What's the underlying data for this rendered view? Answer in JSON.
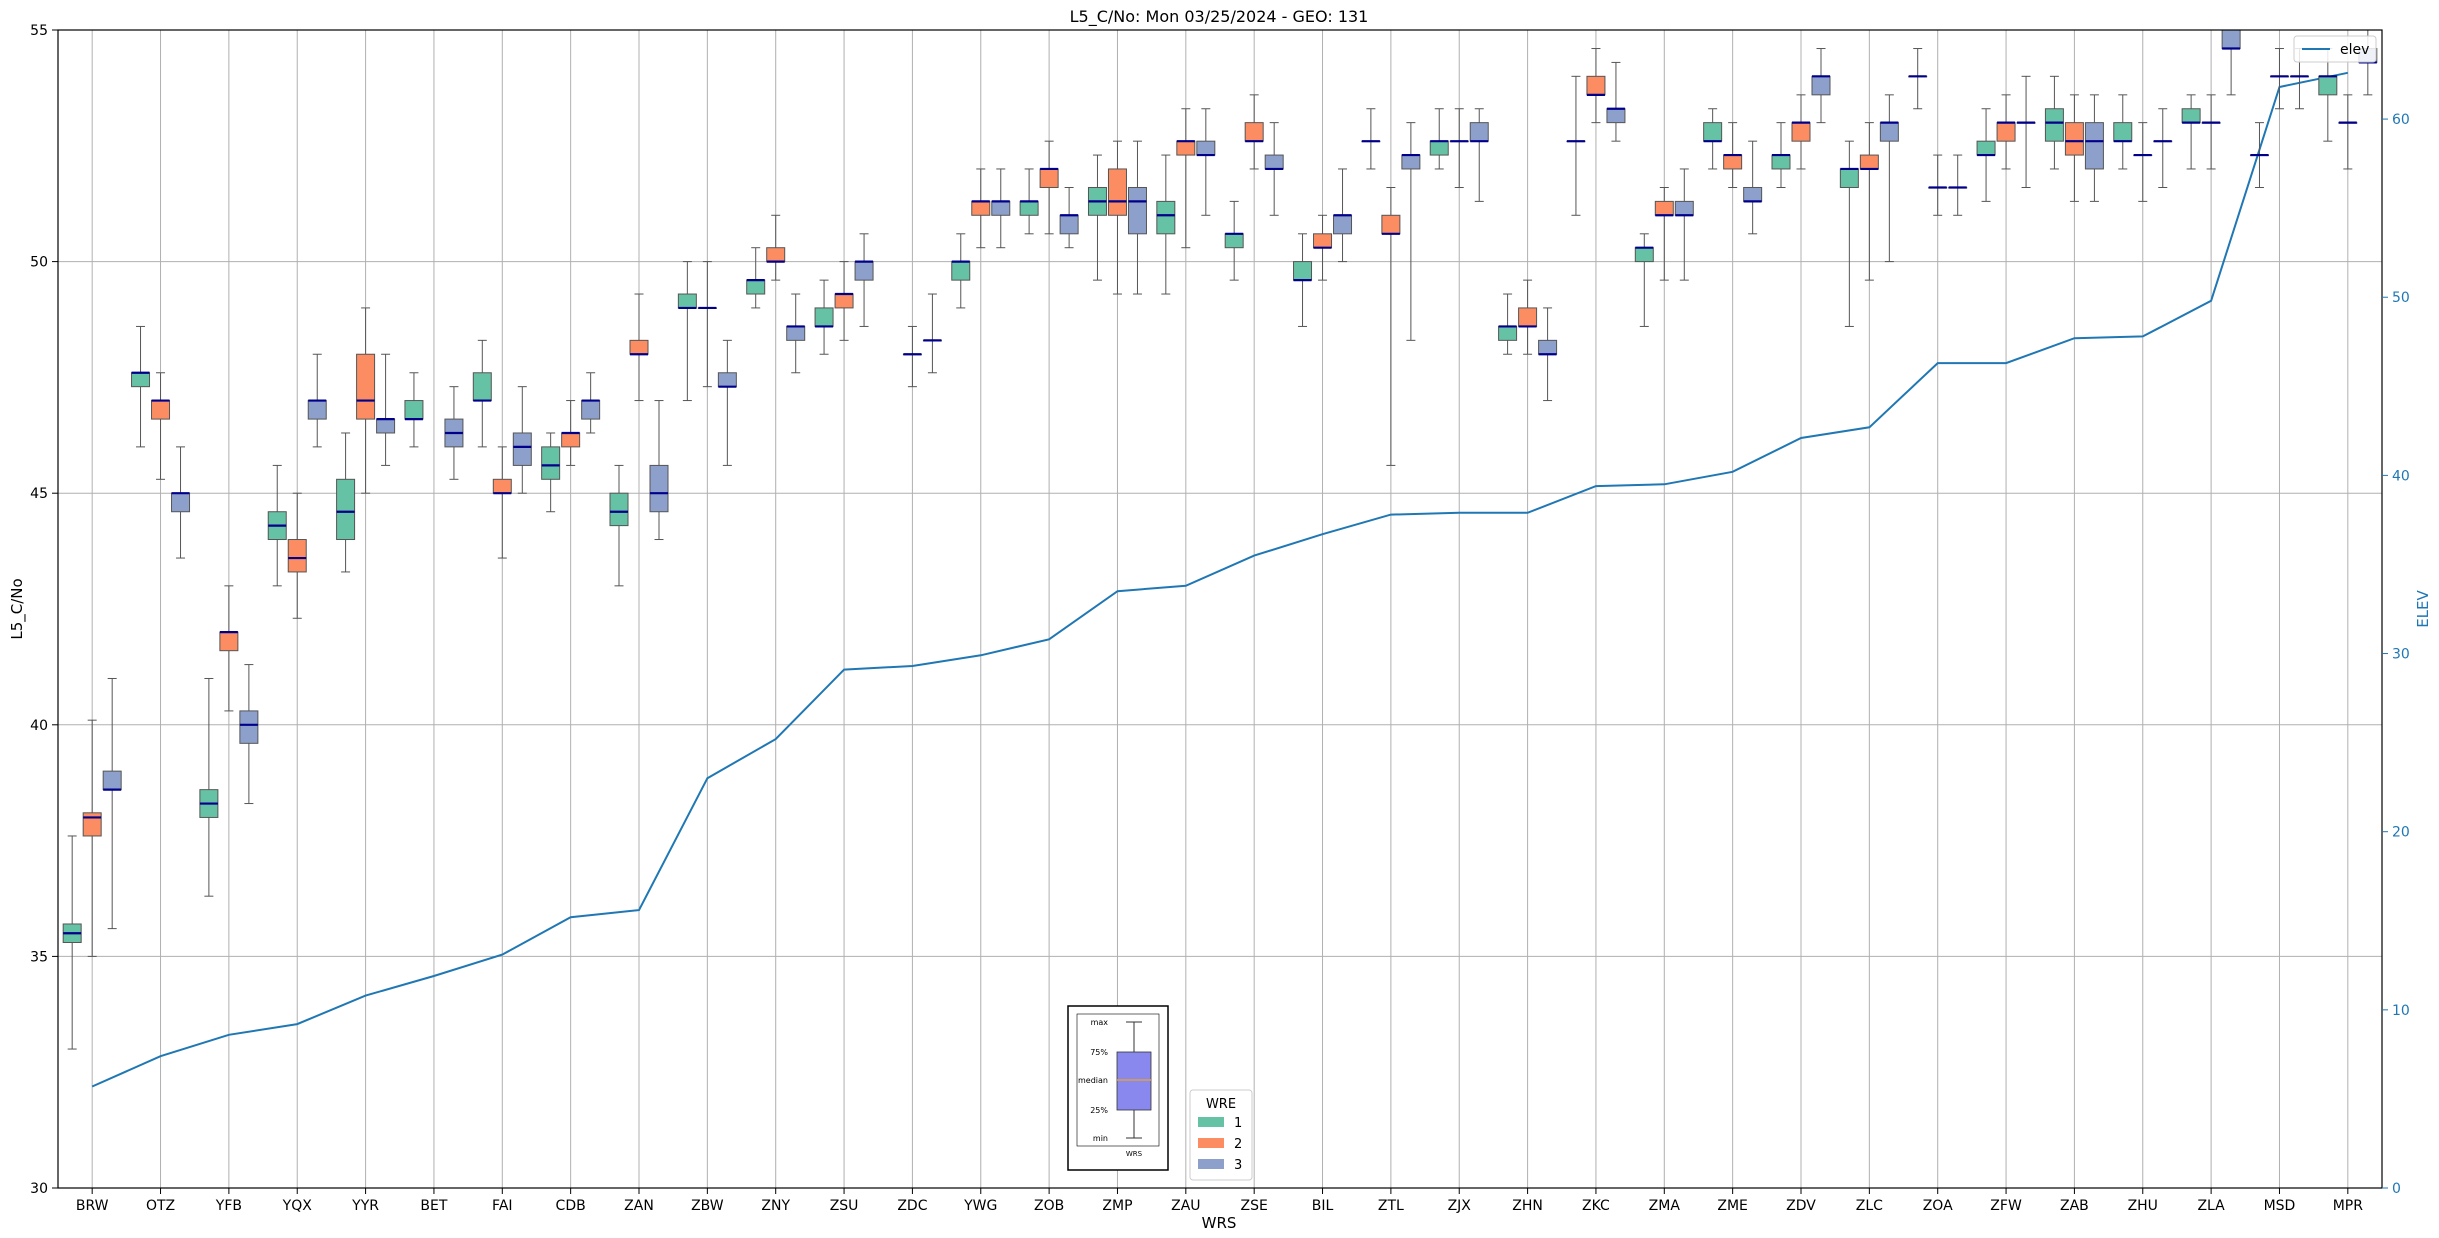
{
  "chart_data": {
    "type": "box",
    "title": "L5_C/No: Mon 03/25/2024 - GEO: 131",
    "xlabel": "WRS",
    "ylabel": "L5_C/No",
    "y2label": "ELEV",
    "ylim": [
      30,
      55
    ],
    "y2lim": [
      0,
      65
    ],
    "yticks": [
      30,
      35,
      40,
      45,
      50,
      55
    ],
    "y2ticks": [
      0,
      10,
      20,
      30,
      40,
      50,
      60
    ],
    "grid": true,
    "colors": {
      "1": "#66c2a5",
      "2": "#fc8d62",
      "3": "#8da0cb",
      "median": "#00008b",
      "elev": "#1f77b4"
    },
    "categories": [
      "BRW",
      "OTZ",
      "YFB",
      "YQX",
      "YYR",
      "BET",
      "FAI",
      "CDB",
      "ZAN",
      "ZBW",
      "ZNY",
      "ZSU",
      "ZDC",
      "YWG",
      "ZOB",
      "ZMP",
      "ZAU",
      "ZSE",
      "BIL",
      "ZTL",
      "ZJX",
      "ZHN",
      "ZKC",
      "ZMA",
      "ZME",
      "ZDV",
      "ZLC",
      "ZOA",
      "ZFW",
      "ZAB",
      "ZHU",
      "ZLA",
      "MSD",
      "MPR"
    ],
    "legend": {
      "title": "WRE",
      "entries": [
        "1",
        "2",
        "3"
      ],
      "position": "lower-center"
    },
    "line_legend": {
      "entries": [
        "elev"
      ],
      "position": "upper-right"
    },
    "key": {
      "labels": [
        "max",
        "75%",
        "median",
        "25%",
        "min"
      ],
      "xlabel": "WRS"
    },
    "boxes": [
      {
        "cat": "BRW",
        "wre": "1",
        "min": 33.0,
        "q1": 35.3,
        "med": 35.5,
        "q3": 35.7,
        "max": 37.6
      },
      {
        "cat": "BRW",
        "wre": "2",
        "min": 35.0,
        "q1": 37.6,
        "med": 38.0,
        "q3": 38.1,
        "max": 40.1
      },
      {
        "cat": "BRW",
        "wre": "3",
        "min": 35.6,
        "q1": 38.6,
        "med": 38.6,
        "q3": 39.0,
        "max": 41.0
      },
      {
        "cat": "OTZ",
        "wre": "1",
        "min": 46.0,
        "q1": 47.3,
        "med": 47.6,
        "q3": 47.6,
        "max": 48.6
      },
      {
        "cat": "OTZ",
        "wre": "2",
        "min": 45.3,
        "q1": 46.6,
        "med": 47.0,
        "q3": 47.0,
        "max": 47.6
      },
      {
        "cat": "OTZ",
        "wre": "3",
        "min": 43.6,
        "q1": 44.6,
        "med": 45.0,
        "q3": 45.0,
        "max": 46.0
      },
      {
        "cat": "YFB",
        "wre": "1",
        "min": 36.3,
        "q1": 38.0,
        "med": 38.3,
        "q3": 38.6,
        "max": 41.0
      },
      {
        "cat": "YFB",
        "wre": "2",
        "min": 40.3,
        "q1": 41.6,
        "med": 42.0,
        "q3": 42.0,
        "max": 43.0
      },
      {
        "cat": "YFB",
        "wre": "3",
        "min": 38.3,
        "q1": 39.6,
        "med": 40.0,
        "q3": 40.3,
        "max": 41.3
      },
      {
        "cat": "YQX",
        "wre": "1",
        "min": 43.0,
        "q1": 44.0,
        "med": 44.3,
        "q3": 44.6,
        "max": 45.6
      },
      {
        "cat": "YQX",
        "wre": "2",
        "min": 42.3,
        "q1": 43.3,
        "med": 43.6,
        "q3": 44.0,
        "max": 45.0
      },
      {
        "cat": "YQX",
        "wre": "3",
        "min": 46.0,
        "q1": 46.6,
        "med": 47.0,
        "q3": 47.0,
        "max": 48.0
      },
      {
        "cat": "YYR",
        "wre": "1",
        "min": 43.3,
        "q1": 44.0,
        "med": 44.6,
        "q3": 45.3,
        "max": 46.3
      },
      {
        "cat": "YYR",
        "wre": "2",
        "min": 45.0,
        "q1": 46.6,
        "med": 47.0,
        "q3": 48.0,
        "max": 49.0
      },
      {
        "cat": "YYR",
        "wre": "3",
        "min": 45.6,
        "q1": 46.3,
        "med": 46.6,
        "q3": 46.6,
        "max": 48.0
      },
      {
        "cat": "BET",
        "wre": "1",
        "min": 46.0,
        "q1": 46.6,
        "med": 46.6,
        "q3": 47.0,
        "max": 47.6
      },
      {
        "cat": "BET",
        "wre": "3",
        "min": 45.3,
        "q1": 46.0,
        "med": 46.3,
        "q3": 46.6,
        "max": 47.3
      },
      {
        "cat": "FAI",
        "wre": "1",
        "min": 46.0,
        "q1": 47.0,
        "med": 47.0,
        "q3": 47.6,
        "max": 48.3
      },
      {
        "cat": "FAI",
        "wre": "2",
        "min": 43.6,
        "q1": 45.0,
        "med": 45.0,
        "q3": 45.3,
        "max": 46.0
      },
      {
        "cat": "FAI",
        "wre": "3",
        "min": 45.0,
        "q1": 45.6,
        "med": 46.0,
        "q3": 46.3,
        "max": 47.3
      },
      {
        "cat": "CDB",
        "wre": "1",
        "min": 44.6,
        "q1": 45.3,
        "med": 45.6,
        "q3": 46.0,
        "max": 46.3
      },
      {
        "cat": "CDB",
        "wre": "2",
        "min": 45.6,
        "q1": 46.0,
        "med": 46.3,
        "q3": 46.3,
        "max": 47.0
      },
      {
        "cat": "CDB",
        "wre": "3",
        "min": 46.3,
        "q1": 46.6,
        "med": 47.0,
        "q3": 47.0,
        "max": 47.6
      },
      {
        "cat": "ZAN",
        "wre": "1",
        "min": 43.0,
        "q1": 44.3,
        "med": 44.6,
        "q3": 45.0,
        "max": 45.6
      },
      {
        "cat": "ZAN",
        "wre": "2",
        "min": 47.0,
        "q1": 48.0,
        "med": 48.0,
        "q3": 48.3,
        "max": 49.3
      },
      {
        "cat": "ZAN",
        "wre": "3",
        "min": 44.0,
        "q1": 44.6,
        "med": 45.0,
        "q3": 45.6,
        "max": 47.0
      },
      {
        "cat": "ZBW",
        "wre": "1",
        "min": 47.0,
        "q1": 49.0,
        "med": 49.0,
        "q3": 49.3,
        "max": 50.0
      },
      {
        "cat": "ZBW",
        "wre": "2",
        "min": 47.3,
        "q1": 49.0,
        "med": 49.0,
        "q3": 49.0,
        "max": 50.0
      },
      {
        "cat": "ZBW",
        "wre": "3",
        "min": 45.6,
        "q1": 47.3,
        "med": 47.3,
        "q3": 47.6,
        "max": 48.3
      },
      {
        "cat": "ZNY",
        "wre": "1",
        "min": 49.0,
        "q1": 49.3,
        "med": 49.6,
        "q3": 49.6,
        "max": 50.3
      },
      {
        "cat": "ZNY",
        "wre": "2",
        "min": 49.6,
        "q1": 50.0,
        "med": 50.0,
        "q3": 50.3,
        "max": 51.0
      },
      {
        "cat": "ZNY",
        "wre": "3",
        "min": 47.6,
        "q1": 48.3,
        "med": 48.6,
        "q3": 48.6,
        "max": 49.3
      },
      {
        "cat": "ZSU",
        "wre": "1",
        "min": 48.0,
        "q1": 48.6,
        "med": 48.6,
        "q3": 49.0,
        "max": 49.6
      },
      {
        "cat": "ZSU",
        "wre": "2",
        "min": 48.3,
        "q1": 49.0,
        "med": 49.3,
        "q3": 49.3,
        "max": 50.0
      },
      {
        "cat": "ZSU",
        "wre": "3",
        "min": 48.6,
        "q1": 49.6,
        "med": 50.0,
        "q3": 50.0,
        "max": 50.6
      },
      {
        "cat": "ZDC",
        "wre": "2",
        "min": 47.3,
        "q1": 48.0,
        "med": 48.0,
        "q3": 48.0,
        "max": 48.6
      },
      {
        "cat": "ZDC",
        "wre": "3",
        "min": 47.6,
        "q1": 48.3,
        "med": 48.3,
        "q3": 48.3,
        "max": 49.3
      },
      {
        "cat": "YWG",
        "wre": "1",
        "min": 49.0,
        "q1": 49.6,
        "med": 50.0,
        "q3": 50.0,
        "max": 50.6
      },
      {
        "cat": "YWG",
        "wre": "2",
        "min": 50.3,
        "q1": 51.0,
        "med": 51.3,
        "q3": 51.3,
        "max": 52.0
      },
      {
        "cat": "YWG",
        "wre": "3",
        "min": 50.3,
        "q1": 51.0,
        "med": 51.3,
        "q3": 51.3,
        "max": 52.0
      },
      {
        "cat": "ZOB",
        "wre": "1",
        "min": 50.6,
        "q1": 51.0,
        "med": 51.3,
        "q3": 51.3,
        "max": 52.0
      },
      {
        "cat": "ZOB",
        "wre": "2",
        "min": 50.6,
        "q1": 51.6,
        "med": 52.0,
        "q3": 52.0,
        "max": 52.6
      },
      {
        "cat": "ZOB",
        "wre": "3",
        "min": 50.3,
        "q1": 50.6,
        "med": 51.0,
        "q3": 51.0,
        "max": 51.6
      },
      {
        "cat": "ZMP",
        "wre": "1",
        "min": 49.6,
        "q1": 51.0,
        "med": 51.3,
        "q3": 51.6,
        "max": 52.3
      },
      {
        "cat": "ZMP",
        "wre": "2",
        "min": 49.3,
        "q1": 51.0,
        "med": 51.3,
        "q3": 52.0,
        "max": 52.6
      },
      {
        "cat": "ZMP",
        "wre": "3",
        "min": 49.3,
        "q1": 50.6,
        "med": 51.3,
        "q3": 51.6,
        "max": 52.6
      },
      {
        "cat": "ZAU",
        "wre": "1",
        "min": 49.3,
        "q1": 50.6,
        "med": 51.0,
        "q3": 51.3,
        "max": 52.3
      },
      {
        "cat": "ZAU",
        "wre": "2",
        "min": 50.3,
        "q1": 52.3,
        "med": 52.6,
        "q3": 52.6,
        "max": 53.3
      },
      {
        "cat": "ZAU",
        "wre": "3",
        "min": 51.0,
        "q1": 52.3,
        "med": 52.3,
        "q3": 52.6,
        "max": 53.3
      },
      {
        "cat": "ZSE",
        "wre": "1",
        "min": 49.6,
        "q1": 50.3,
        "med": 50.6,
        "q3": 50.6,
        "max": 51.3
      },
      {
        "cat": "ZSE",
        "wre": "2",
        "min": 52.0,
        "q1": 52.6,
        "med": 52.6,
        "q3": 53.0,
        "max": 53.6
      },
      {
        "cat": "ZSE",
        "wre": "3",
        "min": 51.0,
        "q1": 52.0,
        "med": 52.0,
        "q3": 52.3,
        "max": 53.0
      },
      {
        "cat": "BIL",
        "wre": "1",
        "min": 48.6,
        "q1": 49.6,
        "med": 49.6,
        "q3": 50.0,
        "max": 50.6
      },
      {
        "cat": "BIL",
        "wre": "2",
        "min": 49.6,
        "q1": 50.3,
        "med": 50.3,
        "q3": 50.6,
        "max": 51.0
      },
      {
        "cat": "BIL",
        "wre": "3",
        "min": 50.0,
        "q1": 50.6,
        "med": 51.0,
        "q3": 51.0,
        "max": 52.0
      },
      {
        "cat": "ZTL",
        "wre": "1",
        "min": 52.0,
        "q1": 52.6,
        "med": 52.6,
        "q3": 52.6,
        "max": 53.3
      },
      {
        "cat": "ZTL",
        "wre": "2",
        "min": 45.6,
        "q1": 50.6,
        "med": 50.6,
        "q3": 51.0,
        "max": 51.6
      },
      {
        "cat": "ZTL",
        "wre": "3",
        "min": 48.3,
        "q1": 52.0,
        "med": 52.3,
        "q3": 52.3,
        "max": 53.0
      },
      {
        "cat": "ZJX",
        "wre": "1",
        "min": 52.0,
        "q1": 52.3,
        "med": 52.6,
        "q3": 52.6,
        "max": 53.3
      },
      {
        "cat": "ZJX",
        "wre": "2",
        "min": 51.6,
        "q1": 52.6,
        "med": 52.6,
        "q3": 52.6,
        "max": 53.3
      },
      {
        "cat": "ZJX",
        "wre": "3",
        "min": 51.3,
        "q1": 52.6,
        "med": 52.6,
        "q3": 53.0,
        "max": 53.3
      },
      {
        "cat": "ZHN",
        "wre": "1",
        "min": 48.0,
        "q1": 48.3,
        "med": 48.6,
        "q3": 48.6,
        "max": 49.3
      },
      {
        "cat": "ZHN",
        "wre": "2",
        "min": 48.0,
        "q1": 48.6,
        "med": 48.6,
        "q3": 49.0,
        "max": 49.6
      },
      {
        "cat": "ZHN",
        "wre": "3",
        "min": 47.0,
        "q1": 48.0,
        "med": 48.0,
        "q3": 48.3,
        "max": 49.0
      },
      {
        "cat": "ZKC",
        "wre": "1",
        "min": 51.0,
        "q1": 52.6,
        "med": 52.6,
        "q3": 52.6,
        "max": 54.0
      },
      {
        "cat": "ZKC",
        "wre": "2",
        "min": 53.0,
        "q1": 53.6,
        "med": 53.6,
        "q3": 54.0,
        "max": 54.6
      },
      {
        "cat": "ZKC",
        "wre": "3",
        "min": 52.6,
        "q1": 53.0,
        "med": 53.3,
        "q3": 53.3,
        "max": 54.3
      },
      {
        "cat": "ZMA",
        "wre": "1",
        "min": 48.6,
        "q1": 50.0,
        "med": 50.3,
        "q3": 50.3,
        "max": 50.6
      },
      {
        "cat": "ZMA",
        "wre": "2",
        "min": 49.6,
        "q1": 51.0,
        "med": 51.0,
        "q3": 51.3,
        "max": 51.6
      },
      {
        "cat": "ZMA",
        "wre": "3",
        "min": 49.6,
        "q1": 51.0,
        "med": 51.0,
        "q3": 51.3,
        "max": 52.0
      },
      {
        "cat": "ZME",
        "wre": "1",
        "min": 52.0,
        "q1": 52.6,
        "med": 52.6,
        "q3": 53.0,
        "max": 53.3
      },
      {
        "cat": "ZME",
        "wre": "2",
        "min": 51.6,
        "q1": 52.0,
        "med": 52.3,
        "q3": 52.3,
        "max": 53.0
      },
      {
        "cat": "ZME",
        "wre": "3",
        "min": 50.6,
        "q1": 51.3,
        "med": 51.3,
        "q3": 51.6,
        "max": 52.6
      },
      {
        "cat": "ZDV",
        "wre": "1",
        "min": 51.6,
        "q1": 52.0,
        "med": 52.3,
        "q3": 52.3,
        "max": 53.0
      },
      {
        "cat": "ZDV",
        "wre": "2",
        "min": 52.0,
        "q1": 52.6,
        "med": 53.0,
        "q3": 53.0,
        "max": 53.6
      },
      {
        "cat": "ZDV",
        "wre": "3",
        "min": 53.0,
        "q1": 53.6,
        "med": 54.0,
        "q3": 54.0,
        "max": 54.6
      },
      {
        "cat": "ZLC",
        "wre": "1",
        "min": 48.6,
        "q1": 51.6,
        "med": 52.0,
        "q3": 52.0,
        "max": 52.6
      },
      {
        "cat": "ZLC",
        "wre": "2",
        "min": 49.6,
        "q1": 52.0,
        "med": 52.0,
        "q3": 52.3,
        "max": 53.0
      },
      {
        "cat": "ZLC",
        "wre": "3",
        "min": 50.0,
        "q1": 52.6,
        "med": 53.0,
        "q3": 53.0,
        "max": 53.6
      },
      {
        "cat": "ZOA",
        "wre": "1",
        "min": 53.3,
        "q1": 54.0,
        "med": 54.0,
        "q3": 54.0,
        "max": 54.6
      },
      {
        "cat": "ZOA",
        "wre": "2",
        "min": 51.0,
        "q1": 51.6,
        "med": 51.6,
        "q3": 51.6,
        "max": 52.3
      },
      {
        "cat": "ZOA",
        "wre": "3",
        "min": 51.0,
        "q1": 51.6,
        "med": 51.6,
        "q3": 51.6,
        "max": 52.3
      },
      {
        "cat": "ZFW",
        "wre": "1",
        "min": 51.3,
        "q1": 52.3,
        "med": 52.3,
        "q3": 52.6,
        "max": 53.3
      },
      {
        "cat": "ZFW",
        "wre": "2",
        "min": 52.0,
        "q1": 52.6,
        "med": 53.0,
        "q3": 53.0,
        "max": 53.6
      },
      {
        "cat": "ZFW",
        "wre": "3",
        "min": 51.6,
        "q1": 53.0,
        "med": 53.0,
        "q3": 53.0,
        "max": 54.0
      },
      {
        "cat": "ZAB",
        "wre": "1",
        "min": 52.0,
        "q1": 52.6,
        "med": 53.0,
        "q3": 53.3,
        "max": 54.0
      },
      {
        "cat": "ZAB",
        "wre": "2",
        "min": 51.3,
        "q1": 52.3,
        "med": 52.6,
        "q3": 53.0,
        "max": 53.6
      },
      {
        "cat": "ZAB",
        "wre": "3",
        "min": 51.3,
        "q1": 52.0,
        "med": 52.6,
        "q3": 53.0,
        "max": 53.6
      },
      {
        "cat": "ZHU",
        "wre": "1",
        "min": 52.0,
        "q1": 52.6,
        "med": 52.6,
        "q3": 53.0,
        "max": 53.6
      },
      {
        "cat": "ZHU",
        "wre": "2",
        "min": 51.3,
        "q1": 52.3,
        "med": 52.3,
        "q3": 52.3,
        "max": 53.0
      },
      {
        "cat": "ZHU",
        "wre": "3",
        "min": 51.6,
        "q1": 52.6,
        "med": 52.6,
        "q3": 52.6,
        "max": 53.3
      },
      {
        "cat": "ZLA",
        "wre": "1",
        "min": 52.0,
        "q1": 53.0,
        "med": 53.0,
        "q3": 53.3,
        "max": 53.6
      },
      {
        "cat": "ZLA",
        "wre": "2",
        "min": 52.0,
        "q1": 53.0,
        "med": 53.0,
        "q3": 53.0,
        "max": 53.6
      },
      {
        "cat": "ZLA",
        "wre": "3",
        "min": 53.6,
        "q1": 54.6,
        "med": 54.6,
        "q3": 55.0,
        "max": 55.0
      },
      {
        "cat": "MSD",
        "wre": "1",
        "min": 51.6,
        "q1": 52.3,
        "med": 52.3,
        "q3": 52.3,
        "max": 53.0
      },
      {
        "cat": "MSD",
        "wre": "2",
        "min": 53.3,
        "q1": 54.0,
        "med": 54.0,
        "q3": 54.0,
        "max": 54.6
      },
      {
        "cat": "MSD",
        "wre": "3",
        "min": 53.3,
        "q1": 54.0,
        "med": 54.0,
        "q3": 54.0,
        "max": 54.6
      },
      {
        "cat": "MPR",
        "wre": "1",
        "min": 52.6,
        "q1": 53.6,
        "med": 54.0,
        "q3": 54.0,
        "max": 54.6
      },
      {
        "cat": "MPR",
        "wre": "2",
        "min": 52.0,
        "q1": 53.0,
        "med": 53.0,
        "q3": 53.0,
        "max": 53.6
      },
      {
        "cat": "MPR",
        "wre": "3",
        "min": 53.6,
        "q1": 54.3,
        "med": 54.3,
        "q3": 54.6,
        "max": 55.0
      }
    ],
    "elev_series": {
      "name": "elev",
      "values": [
        5.7,
        7.4,
        8.6,
        9.2,
        10.8,
        11.9,
        13.1,
        15.2,
        15.6,
        23.0,
        25.2,
        29.1,
        29.3,
        29.9,
        30.8,
        33.5,
        33.8,
        35.5,
        36.7,
        37.8,
        37.9,
        37.9,
        39.4,
        39.5,
        40.2,
        42.1,
        42.7,
        46.3,
        46.3,
        47.7,
        47.8,
        49.8,
        61.8,
        62.6
      ]
    }
  }
}
